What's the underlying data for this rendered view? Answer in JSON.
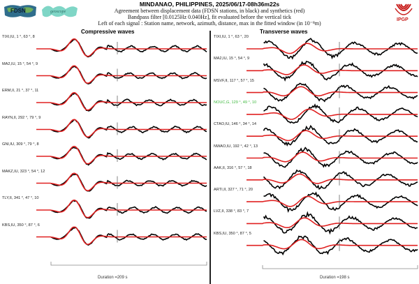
{
  "header": {
    "title": "MINDANAO, PHILIPPINES, 2025/06/17-08h36m22s",
    "line1": "Agreement between displacement data (FDSN stations, in black) and synthetics (red)",
    "line2": "Bandpass filter [0.0125Hz 0.040Hz], fit evaluated before the vertical tick",
    "line3": "Left of each signal : Station name, network, azimuth, distance, max in the fitted window (in 10⁻⁸m)"
  },
  "logos": {
    "left1": "FDSN",
    "left2": "geoscope",
    "right": "IPGP"
  },
  "colors": {
    "data": "#000000",
    "synthetic": "#e02020",
    "highlight": "#3cb83c",
    "logo_red": "#c8201e",
    "fdsn_green": "#4a9a6a",
    "geoscope_teal": "#6fcfc0"
  },
  "chart_data": [
    {
      "type": "line",
      "title": "Compressive waves",
      "duration_label": "Duration =209 s",
      "duration_s": 209,
      "series_legend": [
        "data (black)",
        "synthetics (red)"
      ],
      "stations": [
        {
          "label": "TIXI,IU, 1 °, 63 °, 8",
          "name": "TIXI",
          "network": "IU",
          "azimuth": 1,
          "distance": 63,
          "max": 8,
          "highlight": false
        },
        {
          "label": "MA2,IU, 15 °, 54 °, 9",
          "name": "MA2",
          "network": "IU",
          "azimuth": 15,
          "distance": 54,
          "max": 9,
          "highlight": false
        },
        {
          "label": "ERM,II, 21 °, 37 °, 11",
          "name": "ERM",
          "network": "II",
          "azimuth": 21,
          "distance": 37,
          "max": 11,
          "highlight": false
        },
        {
          "label": "RAYN,II, 292 °, 79 °, 9",
          "name": "RAYN",
          "network": "II",
          "azimuth": 292,
          "distance": 79,
          "max": 9,
          "highlight": false
        },
        {
          "label": "GNI,IU, 309 °, 79 °, 8",
          "name": "GNI",
          "network": "IU",
          "azimuth": 309,
          "distance": 79,
          "max": 8,
          "highlight": false
        },
        {
          "label": "MAKZ,IU, 323 °, 54 °, 12",
          "name": "MAKZ",
          "network": "IU",
          "azimuth": 323,
          "distance": 54,
          "max": 12,
          "highlight": false
        },
        {
          "label": "TLY,II, 341 °, 47 °, 10",
          "name": "TLY",
          "network": "II",
          "azimuth": 341,
          "distance": 47,
          "max": 10,
          "highlight": false
        },
        {
          "label": "KBS,IU, 350 °, 87 °, 6",
          "name": "KBS",
          "network": "IU",
          "azimuth": 350,
          "distance": 87,
          "max": 6,
          "highlight": false
        }
      ]
    },
    {
      "type": "line",
      "title": "Transverse waves",
      "duration_label": "Duration =198 s",
      "duration_s": 198,
      "series_legend": [
        "data (black)",
        "synthetics (red)"
      ],
      "stations": [
        {
          "label": "TIXI,IU, 1 °, 63 °, 20",
          "name": "TIXI",
          "network": "IU",
          "azimuth": 1,
          "distance": 63,
          "max": 20,
          "highlight": false
        },
        {
          "label": "MA2,IU, 15 °, 54 °, 9",
          "name": "MA2",
          "network": "IU",
          "azimuth": 15,
          "distance": 54,
          "max": 9,
          "highlight": false
        },
        {
          "label": "MSVF,II, 117 °, 57 °, 15",
          "name": "MSVF",
          "network": "II",
          "azimuth": 117,
          "distance": 57,
          "max": 15,
          "highlight": false
        },
        {
          "label": "NOUC,G, 129 °, 49 °, 10",
          "name": "NOUC",
          "network": "G",
          "azimuth": 129,
          "distance": 49,
          "max": 10,
          "highlight": true
        },
        {
          "label": "CTAO,IU, 146 °, 34 °, 14",
          "name": "CTAO",
          "network": "IU",
          "azimuth": 146,
          "distance": 34,
          "max": 14,
          "highlight": false
        },
        {
          "label": "NWAO,IU, 192 °, 42 °, 13",
          "name": "NWAO",
          "network": "IU",
          "azimuth": 192,
          "distance": 42,
          "max": 13,
          "highlight": false
        },
        {
          "label": "AAK,II, 316 °, 57 °, 18",
          "name": "AAK",
          "network": "II",
          "azimuth": 316,
          "distance": 57,
          "max": 18,
          "highlight": false
        },
        {
          "label": "ARTI,II, 327 °, 71 °, 20",
          "name": "ARTI",
          "network": "II",
          "azimuth": 327,
          "distance": 71,
          "max": 20,
          "highlight": false
        },
        {
          "label": "LVZ,II, 338 °, 83 °, 7",
          "name": "LVZ",
          "network": "II",
          "azimuth": 338,
          "distance": 83,
          "max": 7,
          "highlight": false
        },
        {
          "label": "KBS,IU, 350 °, 87 °, 5",
          "name": "KBS",
          "network": "IU",
          "azimuth": 350,
          "distance": 87,
          "max": 5,
          "highlight": false
        }
      ]
    }
  ]
}
